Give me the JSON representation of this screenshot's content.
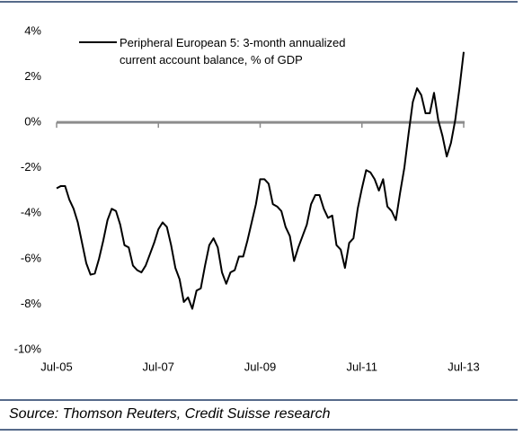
{
  "chart_data": {
    "type": "line",
    "source": "Source: Thomson Reuters, Credit Suisse research",
    "categories": [
      "Jul-05",
      null,
      null,
      null,
      null,
      null,
      null,
      null,
      null,
      null,
      null,
      null,
      null,
      null,
      null,
      null,
      null,
      null,
      null,
      null,
      null,
      null,
      null,
      null,
      "Jul-07",
      null,
      null,
      null,
      null,
      null,
      null,
      null,
      null,
      null,
      null,
      null,
      null,
      null,
      null,
      null,
      null,
      null,
      null,
      null,
      null,
      null,
      null,
      null,
      "Jul-09",
      null,
      null,
      null,
      null,
      null,
      null,
      null,
      null,
      null,
      null,
      null,
      null,
      null,
      null,
      null,
      null,
      null,
      null,
      null,
      null,
      null,
      null,
      null,
      "Jul-11",
      null,
      null,
      null,
      null,
      null,
      null,
      null,
      null,
      null,
      null,
      null,
      null,
      null,
      null,
      null,
      null,
      null,
      null,
      null,
      null,
      null,
      null,
      null,
      "Jul-13"
    ],
    "series": [
      {
        "name": "Peripheral European 5: 3-month annualized current account balance, % of GDP",
        "color": "#000000",
        "values": [
          -2.9,
          -2.8,
          -2.8,
          -3.4,
          -3.8,
          -4.4,
          -5.3,
          -6.2,
          -6.7,
          -6.65,
          -6.0,
          -5.2,
          -4.3,
          -3.8,
          -3.9,
          -4.5,
          -5.4,
          -5.5,
          -6.3,
          -6.5,
          -6.6,
          -6.3,
          -5.8,
          -5.3,
          -4.7,
          -4.4,
          -4.6,
          -5.4,
          -6.4,
          -6.9,
          -7.9,
          -7.7,
          -8.2,
          -7.4,
          -7.3,
          -6.3,
          -5.4,
          -5.1,
          -5.5,
          -6.6,
          -7.1,
          -6.6,
          -6.5,
          -5.9,
          -5.9,
          -5.2,
          -4.4,
          -3.6,
          -2.5,
          -2.5,
          -2.7,
          -3.6,
          -3.7,
          -3.9,
          -4.6,
          -5.0,
          -6.1,
          -5.5,
          -5.0,
          -4.5,
          -3.6,
          -3.2,
          -3.2,
          -3.8,
          -4.2,
          -4.1,
          -5.4,
          -5.6,
          -6.4,
          -5.3,
          -5.1,
          -3.8,
          -2.9,
          -2.1,
          -2.2,
          -2.5,
          -3.0,
          -2.5,
          -3.7,
          -3.9,
          -4.3,
          -3.1,
          -2.0,
          -0.5,
          0.9,
          1.5,
          1.2,
          0.4,
          0.4,
          1.3,
          0.1,
          -0.6,
          -1.5,
          -0.9,
          0.1,
          1.5,
          3.1
        ]
      }
    ],
    "ylim": [
      -10,
      4
    ],
    "yticks": [
      {
        "value": 4,
        "label": "4%"
      },
      {
        "value": 2,
        "label": "2%"
      },
      {
        "value": 0,
        "label": "0%"
      },
      {
        "value": -2,
        "label": "-2%"
      },
      {
        "value": -4,
        "label": "-4%"
      },
      {
        "value": -6,
        "label": "-6%"
      },
      {
        "value": -8,
        "label": "-8%"
      },
      {
        "value": -10,
        "label": "-10%"
      }
    ],
    "zero_line_color": "#8c8c8c",
    "legend": "upper left",
    "grid": false
  }
}
